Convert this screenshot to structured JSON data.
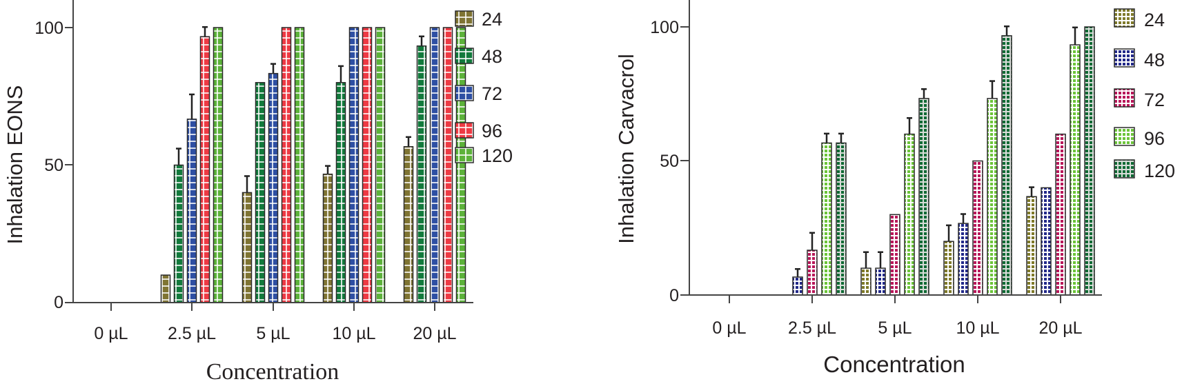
{
  "chart_data": [
    {
      "type": "bar",
      "title": "",
      "xlabel": "Concentration",
      "ylabel": "Inhalation EONS",
      "ylim": [
        0,
        100
      ],
      "yticks": [
        0,
        50,
        100
      ],
      "categories": [
        "0 µL",
        "2.5 µL",
        "5 µL",
        "10 µL",
        "20 µL"
      ],
      "legend_position": "right",
      "grid": false,
      "series": [
        {
          "name": "24",
          "color": "#7f7433",
          "pattern": "grid",
          "values": [
            0,
            10,
            40,
            46.7,
            56.7
          ],
          "errors": [
            0,
            0,
            6,
            3,
            3.5
          ]
        },
        {
          "name": "48",
          "color": "#127a3c",
          "pattern": "grid",
          "values": [
            0,
            50,
            80,
            80,
            93.3
          ],
          "errors": [
            0,
            6,
            0,
            6,
            3.5
          ]
        },
        {
          "name": "72",
          "color": "#2e4fa3",
          "pattern": "grid",
          "values": [
            0,
            66.7,
            83.3,
            100,
            100
          ],
          "errors": [
            0,
            9,
            3.5,
            0,
            0
          ]
        },
        {
          "name": "96",
          "color": "#ee3a44",
          "pattern": "grid",
          "values": [
            0,
            96.7,
            100,
            100,
            100
          ],
          "errors": [
            0,
            3.5,
            0,
            0,
            0
          ]
        },
        {
          "name": "120",
          "color": "#5cb23a",
          "pattern": "grid",
          "values": [
            0,
            100,
            100,
            100,
            100
          ],
          "errors": [
            0,
            0,
            0,
            0,
            0
          ]
        }
      ]
    },
    {
      "type": "bar",
      "title": "",
      "xlabel": "Concentration",
      "ylabel": "Inhalation Carvacrol",
      "ylim": [
        0,
        100
      ],
      "yticks": [
        0,
        50,
        100
      ],
      "categories": [
        "0 µL",
        "2.5 µL",
        "5 µL",
        "10 µL",
        "20 µL"
      ],
      "legend_position": "right",
      "grid": false,
      "series": [
        {
          "name": "24",
          "color": "#7f7a2a",
          "pattern": "dash",
          "values": [
            0,
            0,
            10,
            20,
            36.7
          ],
          "errors": [
            0,
            0,
            6,
            6,
            3.5
          ]
        },
        {
          "name": "48",
          "color": "#232a8a",
          "pattern": "dash",
          "values": [
            0,
            6.7,
            10,
            26.7,
            40
          ],
          "errors": [
            0,
            3,
            6,
            3.5,
            0
          ]
        },
        {
          "name": "72",
          "color": "#b8185a",
          "pattern": "dash",
          "values": [
            0,
            16.7,
            30,
            50,
            60
          ],
          "errors": [
            0,
            6.5,
            0,
            0,
            0
          ]
        },
        {
          "name": "96",
          "color": "#6cc43a",
          "pattern": "dash",
          "values": [
            0,
            56.7,
            60,
            73.3,
            93.3
          ],
          "errors": [
            0,
            3.5,
            6,
            6.5,
            6.5
          ]
        },
        {
          "name": "120",
          "color": "#0f6a34",
          "pattern": "dash-gray",
          "values": [
            0,
            56.7,
            73.3,
            96.7,
            100
          ],
          "errors": [
            0,
            3.5,
            3.5,
            3.5,
            0
          ]
        }
      ]
    }
  ],
  "panels": [
    {
      "ylabel": "Inhalation EONS",
      "xlabel": "Concentration",
      "ytick_labels": [
        "0",
        "50",
        "100"
      ],
      "xtick_labels": [
        "0 µL",
        "2.5 µL",
        "5 µL",
        "10 µL",
        "20 µL"
      ],
      "legend": [
        "24",
        "48",
        "72",
        "96",
        "120"
      ]
    },
    {
      "ylabel": "Inhalation Carvacrol",
      "xlabel": "Concentration",
      "ytick_labels": [
        "0",
        "50",
        "100"
      ],
      "xtick_labels": [
        "0 µL",
        "2.5 µL",
        "5 µL",
        "10 µL",
        "20 µL"
      ],
      "legend": [
        "24",
        "48",
        "72",
        "96",
        "120"
      ]
    }
  ]
}
